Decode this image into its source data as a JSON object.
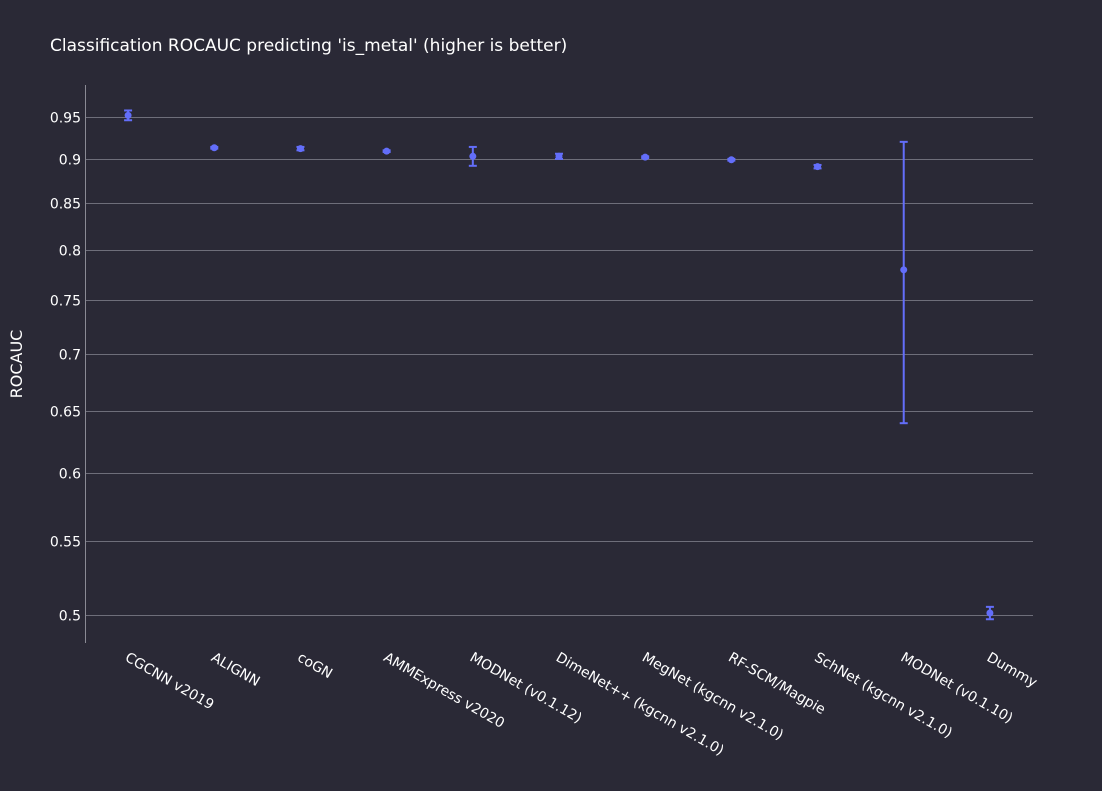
{
  "chart_data": {
    "type": "scatter",
    "title": "Classification ROCAUC predicting 'is_metal' (higher is better)",
    "xlabel": "",
    "ylabel": "ROCAUC",
    "y_scale": "log",
    "ylim": [
      0.482,
      0.99
    ],
    "yticks": [
      0.5,
      0.55,
      0.6,
      0.65,
      0.7,
      0.75,
      0.8,
      0.85,
      0.9,
      0.95
    ],
    "ytick_labels": [
      "0.5",
      "0.55",
      "0.6",
      "0.65",
      "0.7",
      "0.75",
      "0.8",
      "0.85",
      "0.9",
      "0.95"
    ],
    "grid": true,
    "marker_color": "#636efa",
    "categories": [
      "CGCNN v2019",
      "ALIGNN",
      "coGN",
      "AMMExpress v2020",
      "MODNet (v0.1.12)",
      "DimeNet++ (kgcnn v2.1.0)",
      "MegNet (kgcnn v2.1.0)",
      "RF-SCM/Magpie",
      "SchNet (kgcnn v2.1.0)",
      "MODNet (v0.1.10)",
      "Dummy"
    ],
    "values": [
      0.952,
      0.913,
      0.912,
      0.909,
      0.903,
      0.903,
      0.902,
      0.899,
      0.891,
      0.78,
      0.501
    ],
    "errors": [
      0.006,
      0.001,
      0.002,
      0.001,
      0.011,
      0.003,
      0.001,
      0.001,
      0.002,
      0.14,
      0.004
    ]
  }
}
